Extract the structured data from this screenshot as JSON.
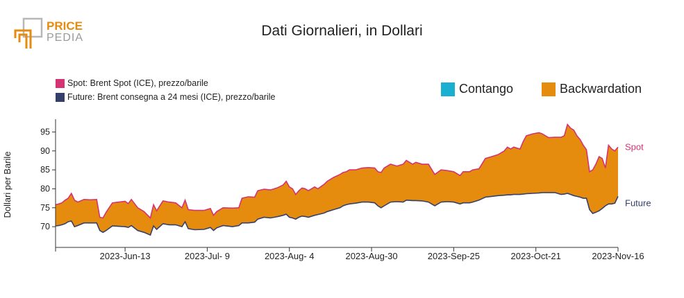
{
  "logo": {
    "line1": "PRICE",
    "line2": "PEDIA"
  },
  "chart_data": {
    "type": "area",
    "title": "Dati Giornalieri, in Dollari",
    "ylabel": "Dollari per Barile",
    "ylim": [
      66,
      98
    ],
    "yticks": [
      70,
      75,
      80,
      85,
      90,
      95
    ],
    "xlim": [
      "2023-05-22",
      "2023-11-16"
    ],
    "xtick_dates": [
      "2023-06-13",
      "2023-07-09",
      "2023-08-04",
      "2023-08-30",
      "2023-09-25",
      "2023-10-21",
      "2023-11-16"
    ],
    "xtick_labels": [
      "2023-Jun-13",
      "2023-Jul- 9",
      "2023-Aug- 4",
      "2023-Aug-30",
      "2023-Sep-25",
      "2023-Oct-21",
      "2023-Nov-16"
    ],
    "series": [
      {
        "name": "Spot: Brent Spot (ICE), prezzo/barile",
        "end_label": "Spot",
        "color": "#d63373",
        "points": [
          [
            "2023-05-22",
            75.8
          ],
          [
            "2023-05-23",
            76.0
          ],
          [
            "2023-05-24",
            76.3
          ],
          [
            "2023-05-25",
            77.0
          ],
          [
            "2023-05-26",
            77.5
          ],
          [
            "2023-05-27",
            78.8
          ],
          [
            "2023-05-28",
            77.0
          ],
          [
            "2023-05-29",
            76.5
          ],
          [
            "2023-05-31",
            77.2
          ],
          [
            "2023-06-02",
            77.1
          ],
          [
            "2023-06-04",
            77.2
          ],
          [
            "2023-06-05",
            72.5
          ],
          [
            "2023-06-06",
            72.3
          ],
          [
            "2023-06-07",
            73.8
          ],
          [
            "2023-06-09",
            76.3
          ],
          [
            "2023-06-11",
            76.5
          ],
          [
            "2023-06-13",
            76.7
          ],
          [
            "2023-06-14",
            76.1
          ],
          [
            "2023-06-15",
            77.2
          ],
          [
            "2023-06-17",
            75.0
          ],
          [
            "2023-06-19",
            74.0
          ],
          [
            "2023-06-21",
            72.3
          ],
          [
            "2023-06-22",
            75.8
          ],
          [
            "2023-06-23",
            74.2
          ],
          [
            "2023-06-25",
            76.8
          ],
          [
            "2023-06-27",
            76.5
          ],
          [
            "2023-06-29",
            76.3
          ],
          [
            "2023-07-01",
            75.0
          ],
          [
            "2023-07-02",
            77.0
          ],
          [
            "2023-07-03",
            74.5
          ],
          [
            "2023-07-05",
            74.3
          ],
          [
            "2023-07-08",
            74.3
          ],
          [
            "2023-07-10",
            74.8
          ],
          [
            "2023-07-11",
            73.0
          ],
          [
            "2023-07-12",
            74.0
          ],
          [
            "2023-07-14",
            75.0
          ],
          [
            "2023-07-17",
            74.9
          ],
          [
            "2023-07-19",
            75.0
          ],
          [
            "2023-07-20",
            77.5
          ],
          [
            "2023-07-22",
            77.9
          ],
          [
            "2023-07-24",
            77.8
          ],
          [
            "2023-07-25",
            79.5
          ],
          [
            "2023-07-27",
            79.9
          ],
          [
            "2023-07-29",
            79.7
          ],
          [
            "2023-07-31",
            80.2
          ],
          [
            "2023-08-01",
            80.6
          ],
          [
            "2023-08-02",
            81.0
          ],
          [
            "2023-08-03",
            82.0
          ],
          [
            "2023-08-04",
            80.5
          ],
          [
            "2023-08-05",
            80.0
          ],
          [
            "2023-08-06",
            78.5
          ],
          [
            "2023-08-07",
            79.5
          ],
          [
            "2023-08-08",
            80.2
          ],
          [
            "2023-08-09",
            80.0
          ],
          [
            "2023-08-10",
            79.5
          ],
          [
            "2023-08-12",
            80.5
          ],
          [
            "2023-08-13",
            80.0
          ],
          [
            "2023-08-15",
            81.2
          ],
          [
            "2023-08-16",
            82.0
          ],
          [
            "2023-08-18",
            83.0
          ],
          [
            "2023-08-20",
            83.8
          ],
          [
            "2023-08-21",
            84.3
          ],
          [
            "2023-08-22",
            84.5
          ],
          [
            "2023-08-23",
            85.0
          ],
          [
            "2023-08-25",
            85.0
          ],
          [
            "2023-08-27",
            85.5
          ],
          [
            "2023-08-29",
            85.6
          ],
          [
            "2023-08-31",
            85.5
          ],
          [
            "2023-09-01",
            84.5
          ],
          [
            "2023-09-02",
            84.3
          ],
          [
            "2023-09-03",
            85.5
          ],
          [
            "2023-09-05",
            86.5
          ],
          [
            "2023-09-07",
            86.0
          ],
          [
            "2023-09-09",
            86.5
          ],
          [
            "2023-09-10",
            87.5
          ],
          [
            "2023-09-12",
            86.5
          ],
          [
            "2023-09-13",
            87.0
          ],
          [
            "2023-09-15",
            86.5
          ],
          [
            "2023-09-17",
            86.5
          ],
          [
            "2023-09-19",
            83.8
          ],
          [
            "2023-09-21",
            85.0
          ],
          [
            "2023-09-23",
            84.8
          ],
          [
            "2023-09-25",
            84.5
          ],
          [
            "2023-09-27",
            83.5
          ],
          [
            "2023-09-28",
            84.5
          ],
          [
            "2023-09-30",
            84.5
          ],
          [
            "2023-10-01",
            85.0
          ],
          [
            "2023-10-03",
            85.3
          ],
          [
            "2023-10-05",
            88.0
          ],
          [
            "2023-10-07",
            88.5
          ],
          [
            "2023-10-09",
            89.0
          ],
          [
            "2023-10-11",
            90.0
          ],
          [
            "2023-10-12",
            91.0
          ],
          [
            "2023-10-13",
            90.5
          ],
          [
            "2023-10-14",
            91.0
          ],
          [
            "2023-10-16",
            90.5
          ],
          [
            "2023-10-17",
            92.5
          ],
          [
            "2023-10-18",
            94.0
          ],
          [
            "2023-10-20",
            94.5
          ],
          [
            "2023-10-22",
            94.8
          ],
          [
            "2023-10-23",
            94.5
          ],
          [
            "2023-10-25",
            93.5
          ],
          [
            "2023-10-27",
            93.6
          ],
          [
            "2023-10-29",
            93.6
          ],
          [
            "2023-10-30",
            94.0
          ],
          [
            "2023-10-31",
            97.0
          ],
          [
            "2023-11-01",
            96.0
          ],
          [
            "2023-11-02",
            95.5
          ],
          [
            "2023-11-03",
            94.0
          ],
          [
            "2023-11-04",
            93.0
          ],
          [
            "2023-11-05",
            91.5
          ],
          [
            "2023-11-06",
            90.3
          ],
          [
            "2023-11-07",
            84.5
          ],
          [
            "2023-11-08",
            85.0
          ],
          [
            "2023-11-09",
            86.5
          ],
          [
            "2023-11-10",
            88.5
          ],
          [
            "2023-11-11",
            88.0
          ],
          [
            "2023-11-12",
            85.5
          ],
          [
            "2023-11-13",
            91.5
          ],
          [
            "2023-11-14",
            90.5
          ],
          [
            "2023-11-15",
            90.0
          ],
          [
            "2023-11-16",
            91.0
          ]
        ]
      },
      {
        "name": "Future: Brent consegna a 24 mesi (ICE), prezzo/barile",
        "end_label": "Future",
        "color": "#35406a",
        "points": [
          [
            "2023-05-22",
            70.2
          ],
          [
            "2023-05-23",
            70.3
          ],
          [
            "2023-05-24",
            70.5
          ],
          [
            "2023-05-25",
            70.8
          ],
          [
            "2023-05-26",
            71.3
          ],
          [
            "2023-05-27",
            71.5
          ],
          [
            "2023-05-28",
            70.0
          ],
          [
            "2023-05-29",
            70.3
          ],
          [
            "2023-05-31",
            71.0
          ],
          [
            "2023-06-02",
            71.0
          ],
          [
            "2023-06-04",
            71.0
          ],
          [
            "2023-06-05",
            69.0
          ],
          [
            "2023-06-06",
            68.5
          ],
          [
            "2023-06-07",
            69.0
          ],
          [
            "2023-06-09",
            70.2
          ],
          [
            "2023-06-11",
            70.1
          ],
          [
            "2023-06-13",
            70.0
          ],
          [
            "2023-06-14",
            69.8
          ],
          [
            "2023-06-15",
            70.3
          ],
          [
            "2023-06-17",
            69.0
          ],
          [
            "2023-06-19",
            68.5
          ],
          [
            "2023-06-21",
            67.8
          ],
          [
            "2023-06-22",
            70.2
          ],
          [
            "2023-06-23",
            69.3
          ],
          [
            "2023-06-25",
            70.8
          ],
          [
            "2023-06-27",
            70.5
          ],
          [
            "2023-06-29",
            70.5
          ],
          [
            "2023-07-01",
            70.0
          ],
          [
            "2023-07-02",
            71.3
          ],
          [
            "2023-07-03",
            69.5
          ],
          [
            "2023-07-05",
            69.2
          ],
          [
            "2023-07-08",
            69.3
          ],
          [
            "2023-07-10",
            69.8
          ],
          [
            "2023-07-11",
            69.0
          ],
          [
            "2023-07-12",
            69.7
          ],
          [
            "2023-07-14",
            70.3
          ],
          [
            "2023-07-17",
            70.0
          ],
          [
            "2023-07-19",
            70.3
          ],
          [
            "2023-07-20",
            71.0
          ],
          [
            "2023-07-22",
            71.0
          ],
          [
            "2023-07-24",
            71.2
          ],
          [
            "2023-07-25",
            72.0
          ],
          [
            "2023-07-27",
            72.5
          ],
          [
            "2023-07-29",
            72.3
          ],
          [
            "2023-07-31",
            72.6
          ],
          [
            "2023-08-01",
            72.8
          ],
          [
            "2023-08-02",
            73.0
          ],
          [
            "2023-08-03",
            73.3
          ],
          [
            "2023-08-04",
            72.5
          ],
          [
            "2023-08-05",
            72.3
          ],
          [
            "2023-08-06",
            72.0
          ],
          [
            "2023-08-07",
            72.5
          ],
          [
            "2023-08-08",
            72.8
          ],
          [
            "2023-08-09",
            72.7
          ],
          [
            "2023-08-10",
            72.5
          ],
          [
            "2023-08-12",
            73.0
          ],
          [
            "2023-08-13",
            73.2
          ],
          [
            "2023-08-15",
            73.6
          ],
          [
            "2023-08-16",
            74.0
          ],
          [
            "2023-08-18",
            74.5
          ],
          [
            "2023-08-20",
            75.0
          ],
          [
            "2023-08-21",
            75.5
          ],
          [
            "2023-08-22",
            75.8
          ],
          [
            "2023-08-23",
            76.0
          ],
          [
            "2023-08-25",
            76.2
          ],
          [
            "2023-08-27",
            76.5
          ],
          [
            "2023-08-29",
            76.5
          ],
          [
            "2023-08-31",
            76.3
          ],
          [
            "2023-09-01",
            75.5
          ],
          [
            "2023-09-02",
            75.0
          ],
          [
            "2023-09-03",
            75.5
          ],
          [
            "2023-09-05",
            76.5
          ],
          [
            "2023-09-07",
            76.6
          ],
          [
            "2023-09-09",
            76.5
          ],
          [
            "2023-09-10",
            77.0
          ],
          [
            "2023-09-12",
            76.9
          ],
          [
            "2023-09-13",
            76.9
          ],
          [
            "2023-09-15",
            76.8
          ],
          [
            "2023-09-17",
            76.5
          ],
          [
            "2023-09-19",
            75.5
          ],
          [
            "2023-09-21",
            76.5
          ],
          [
            "2023-09-23",
            76.6
          ],
          [
            "2023-09-25",
            76.5
          ],
          [
            "2023-09-27",
            76.0
          ],
          [
            "2023-09-28",
            76.3
          ],
          [
            "2023-09-30",
            76.3
          ],
          [
            "2023-10-01",
            76.5
          ],
          [
            "2023-10-03",
            77.0
          ],
          [
            "2023-10-05",
            77.8
          ],
          [
            "2023-10-07",
            78.0
          ],
          [
            "2023-10-09",
            78.2
          ],
          [
            "2023-10-11",
            78.3
          ],
          [
            "2023-10-12",
            78.4
          ],
          [
            "2023-10-13",
            78.4
          ],
          [
            "2023-10-14",
            78.5
          ],
          [
            "2023-10-16",
            78.5
          ],
          [
            "2023-10-17",
            78.6
          ],
          [
            "2023-10-18",
            78.7
          ],
          [
            "2023-10-20",
            78.8
          ],
          [
            "2023-10-22",
            78.9
          ],
          [
            "2023-10-23",
            79.0
          ],
          [
            "2023-10-25",
            79.0
          ],
          [
            "2023-10-27",
            79.0
          ],
          [
            "2023-10-29",
            78.5
          ],
          [
            "2023-10-30",
            78.6
          ],
          [
            "2023-10-31",
            78.8
          ],
          [
            "2023-11-01",
            78.5
          ],
          [
            "2023-11-02",
            78.2
          ],
          [
            "2023-11-03",
            78.0
          ],
          [
            "2023-11-04",
            77.8
          ],
          [
            "2023-11-05",
            77.5
          ],
          [
            "2023-11-06",
            77.5
          ],
          [
            "2023-11-07",
            74.5
          ],
          [
            "2023-11-08",
            73.5
          ],
          [
            "2023-11-09",
            73.8
          ],
          [
            "2023-11-10",
            74.2
          ],
          [
            "2023-11-11",
            74.8
          ],
          [
            "2023-11-12",
            75.5
          ],
          [
            "2023-11-13",
            76.0
          ],
          [
            "2023-11-14",
            76.0
          ],
          [
            "2023-11-15",
            76.2
          ],
          [
            "2023-11-16",
            78.0
          ]
        ]
      }
    ],
    "area_legend": [
      {
        "label": "Contango",
        "color": "#1aaed0"
      },
      {
        "label": "Backwardation",
        "color": "#e58b0e"
      }
    ],
    "grid": false
  }
}
